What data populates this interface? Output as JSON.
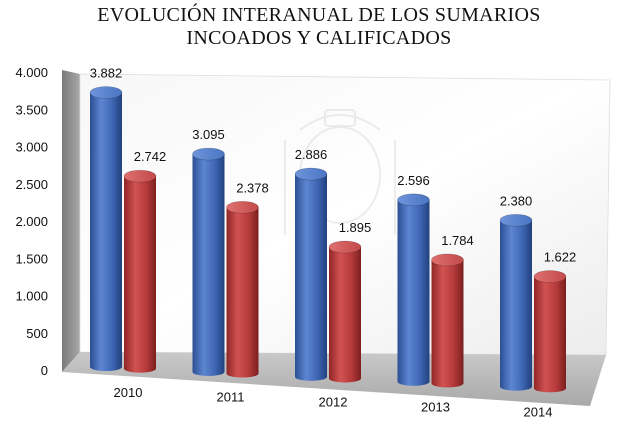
{
  "chart_data": {
    "type": "bar",
    "title_lines": [
      "EVOLUCIÓN INTERANUAL DE LOS SUMARIOS",
      "INCOADOS Y CALIFICADOS"
    ],
    "categories": [
      "2010",
      "2011",
      "2012",
      "2013",
      "2014"
    ],
    "series": [
      {
        "values": [
          3882,
          3095,
          2886,
          2596,
          2380
        ],
        "labels": [
          "3.882",
          "3.095",
          "2.886",
          "2.596",
          "2.380"
        ],
        "color": "#3a63b0"
      },
      {
        "values": [
          2742,
          2378,
          1895,
          1784,
          1622
        ],
        "labels": [
          "2.742",
          "2.378",
          "1.895",
          "1.784",
          "1.622"
        ],
        "color": "#b23a3a"
      }
    ],
    "ylim": [
      0,
      4000
    ],
    "yticks": [
      0,
      500,
      1000,
      1500,
      2000,
      2500,
      3000,
      3500,
      4000
    ],
    "ytick_labels": [
      "0",
      "500",
      "1.000",
      "1.500",
      "2.000",
      "2.500",
      "3.000",
      "3.500",
      "4.000"
    ],
    "grid": false,
    "style": "3d"
  }
}
